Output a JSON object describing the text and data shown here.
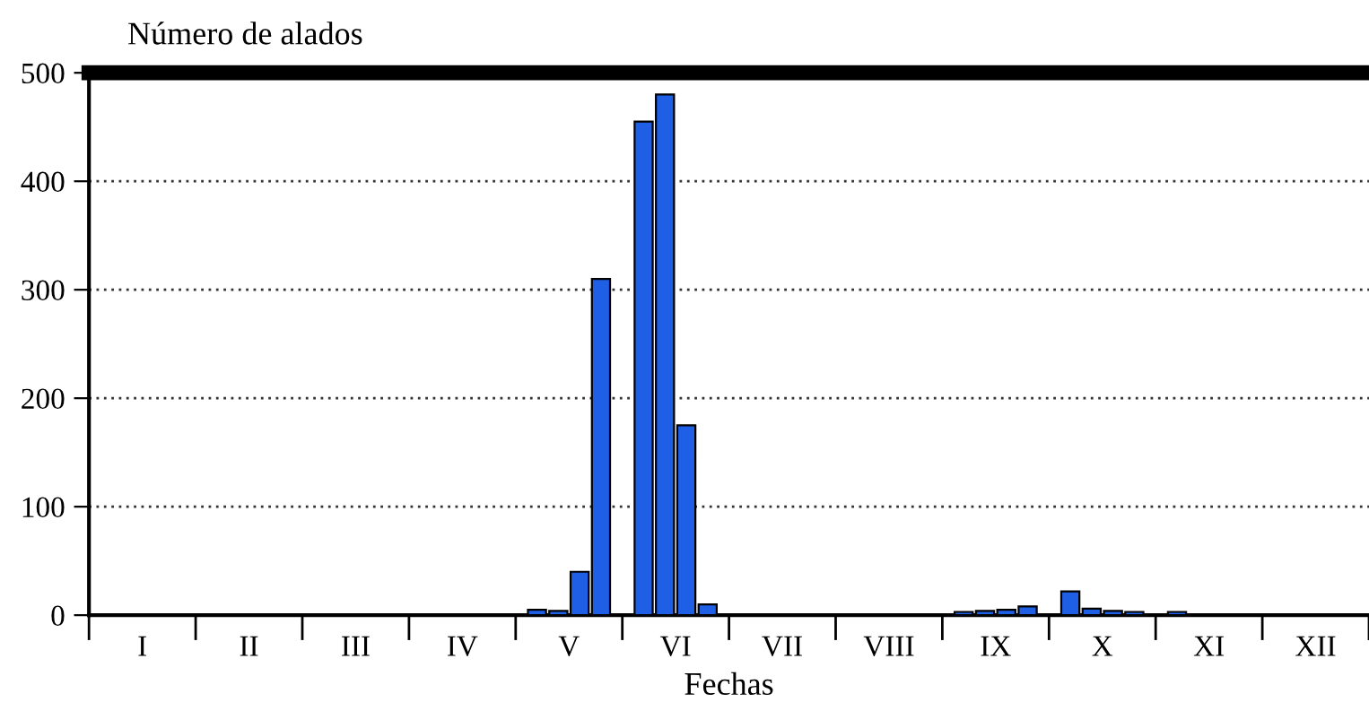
{
  "chart_data": {
    "type": "bar",
    "ylabel": "Número de alados",
    "xlabel": "Fechas",
    "categories": [
      "I",
      "II",
      "III",
      "IV",
      "V",
      "VI",
      "VII",
      "VIII",
      "IX",
      "X",
      "XI",
      "XII"
    ],
    "series": [
      {
        "color": "#1f5fe6",
        "values": [
          null,
          null,
          null,
          null,
          5,
          455,
          null,
          null,
          3,
          22,
          3,
          null
        ]
      },
      {
        "color": "#1f5fe6",
        "values": [
          null,
          null,
          null,
          null,
          4,
          480,
          null,
          null,
          4,
          6,
          null,
          null
        ]
      },
      {
        "color": "#1f5fe6",
        "values": [
          null,
          null,
          null,
          null,
          40,
          175,
          null,
          null,
          5,
          4,
          null,
          null
        ]
      },
      {
        "color": "#1f5fe6",
        "values": [
          null,
          null,
          null,
          null,
          310,
          10,
          null,
          null,
          8,
          3,
          null,
          null
        ]
      }
    ],
    "ylim": [
      0,
      500
    ],
    "yticks": [
      0,
      100,
      200,
      300,
      400,
      500
    ],
    "grid": "y"
  }
}
